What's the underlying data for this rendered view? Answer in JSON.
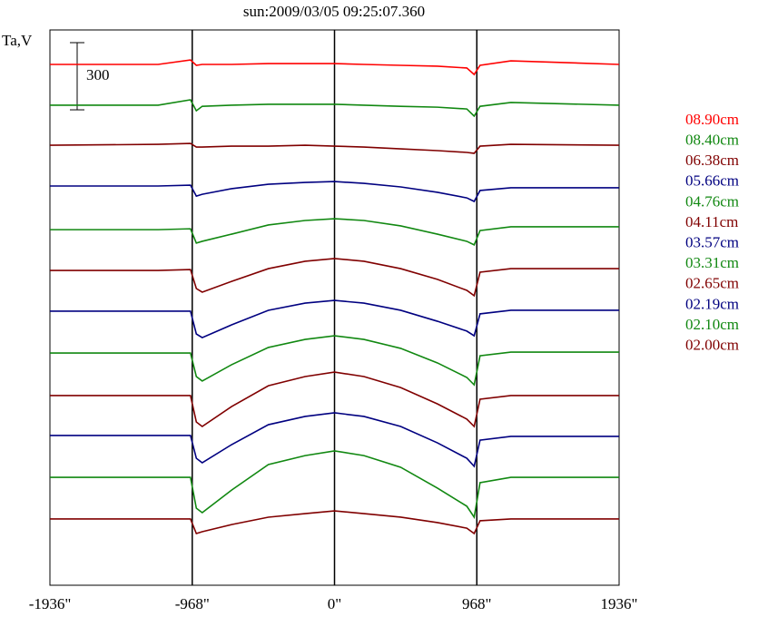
{
  "chart_data": {
    "type": "line",
    "title": "sun:2009/03/05 09:25:07.360",
    "y_label": "Ta,V",
    "scale_bar": 300,
    "xlim": [
      -1936,
      1936
    ],
    "xticks": [
      {
        "value": -1936,
        "label": "-1936\""
      },
      {
        "value": -968,
        "label": "-968\""
      },
      {
        "value": 0,
        "label": "0\""
      },
      {
        "value": 968,
        "label": "968\""
      },
      {
        "value": 1936,
        "label": "1936\""
      }
    ],
    "ylim": [
      0,
      2480
    ],
    "x": [
      -1936,
      -1200,
      -980,
      -940,
      -900,
      -700,
      -450,
      -200,
      0,
      200,
      450,
      700,
      900,
      950,
      990,
      1200,
      1936
    ],
    "series": [
      {
        "name": "08.90cm",
        "color": "#ff0000",
        "values": [
          2326,
          2326,
          2346,
          2322,
          2326,
          2326,
          2330,
          2330,
          2330,
          2326,
          2322,
          2318,
          2310,
          2281,
          2322,
          2342,
          2326
        ]
      },
      {
        "name": "08.40cm",
        "color": "#118811",
        "values": [
          2144,
          2144,
          2168,
          2119,
          2139,
          2144,
          2148,
          2148,
          2148,
          2144,
          2139,
          2135,
          2127,
          2095,
          2139,
          2156,
          2144
        ]
      },
      {
        "name": "06.38cm",
        "color": "#800000",
        "values": [
          1965,
          1969,
          1973,
          1957,
          1957,
          1961,
          1961,
          1965,
          1961,
          1957,
          1949,
          1941,
          1933,
          1929,
          1961,
          1969,
          1965
        ]
      },
      {
        "name": "05.66cm",
        "color": "#000080",
        "values": [
          1783,
          1783,
          1787,
          1738,
          1746,
          1771,
          1791,
          1799,
          1803,
          1795,
          1779,
          1755,
          1730,
          1714,
          1763,
          1775,
          1775
        ]
      },
      {
        "name": "04.76cm",
        "color": "#118811",
        "values": [
          1588,
          1588,
          1592,
          1528,
          1536,
          1568,
          1609,
          1629,
          1637,
          1629,
          1605,
          1568,
          1536,
          1520,
          1584,
          1601,
          1601
        ]
      },
      {
        "name": "04.11cm",
        "color": "#800000",
        "values": [
          1406,
          1406,
          1410,
          1325,
          1309,
          1357,
          1414,
          1447,
          1459,
          1447,
          1414,
          1366,
          1317,
          1293,
          1398,
          1414,
          1414
        ]
      },
      {
        "name": "03.57cm",
        "color": "#000080",
        "values": [
          1224,
          1224,
          1224,
          1122,
          1106,
          1163,
          1228,
          1260,
          1272,
          1260,
          1228,
          1179,
          1135,
          1114,
          1212,
          1228,
          1228
        ]
      },
      {
        "name": "03.31cm",
        "color": "#118811",
        "values": [
          1037,
          1037,
          1037,
          932,
          912,
          985,
          1062,
          1098,
          1114,
          1098,
          1058,
          993,
          928,
          895,
          1025,
          1041,
          1041
        ]
      },
      {
        "name": "02.65cm",
        "color": "#800000",
        "values": [
          847,
          847,
          847,
          729,
          709,
          798,
          891,
          932,
          952,
          932,
          883,
          810,
          742,
          709,
          831,
          847,
          847
        ]
      },
      {
        "name": "02.19cm",
        "color": "#000080",
        "values": [
          669,
          669,
          669,
          567,
          547,
          628,
          717,
          754,
          770,
          754,
          709,
          636,
          567,
          531,
          648,
          665,
          665
        ]
      },
      {
        "name": "02.10cm",
        "color": "#118811",
        "values": [
          482,
          482,
          482,
          344,
          324,
          425,
          539,
          579,
          600,
          579,
          527,
          434,
          353,
          304,
          458,
          482,
          482
        ]
      },
      {
        "name": "02.00cm",
        "color": "#800000",
        "values": [
          296,
          296,
          296,
          231,
          239,
          271,
          304,
          320,
          332,
          320,
          304,
          280,
          255,
          231,
          288,
          296,
          296
        ]
      }
    ]
  }
}
